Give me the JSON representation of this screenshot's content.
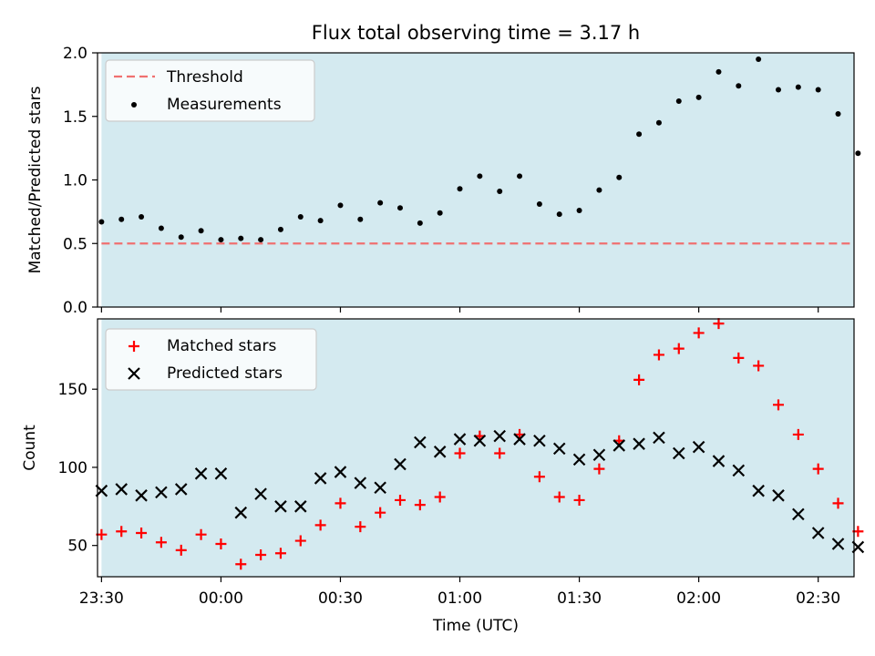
{
  "chart_data": [
    {
      "type": "scatter",
      "title": "Flux total observing time = 3.17 h",
      "ylabel": "Matched/Predicted stars",
      "xlim": [
        "23:29",
        "02:39"
      ],
      "ylim": [
        0,
        2.0
      ],
      "yticks": [
        0.0,
        0.5,
        1.0,
        1.5,
        2.0
      ],
      "ytick_labels": [
        "0.0",
        "0.5",
        "1.0",
        "1.5",
        "2.0"
      ],
      "grid": false,
      "legend": "top-left",
      "shaded_span": {
        "from": "23:30",
        "to": "02:39",
        "color": "#d4eaf0"
      },
      "threshold": {
        "name": "Threshold",
        "value": 0.5,
        "color": "#f07070",
        "style": "dashed"
      },
      "series": [
        {
          "name": "Measurements",
          "color": "#000000",
          "marker": "dot",
          "x": [
            "23:30",
            "23:35",
            "23:40",
            "23:45",
            "23:50",
            "23:55",
            "00:00",
            "00:05",
            "00:10",
            "00:15",
            "00:20",
            "00:25",
            "00:30",
            "00:35",
            "00:40",
            "00:45",
            "00:50",
            "00:55",
            "01:00",
            "01:05",
            "01:10",
            "01:15",
            "01:20",
            "01:25",
            "01:30",
            "01:35",
            "01:40",
            "01:45",
            "01:50",
            "01:55",
            "02:00",
            "02:05",
            "02:10",
            "02:15",
            "02:20",
            "02:25",
            "02:30",
            "02:35",
            "02:40"
          ],
          "y": [
            0.67,
            0.69,
            0.71,
            0.62,
            0.55,
            0.6,
            0.53,
            0.54,
            0.53,
            0.61,
            0.71,
            0.68,
            0.8,
            0.69,
            0.82,
            0.78,
            0.66,
            0.74,
            0.93,
            1.03,
            0.91,
            1.03,
            0.81,
            0.73,
            0.76,
            0.92,
            1.02,
            1.36,
            1.45,
            1.62,
            1.65,
            1.85,
            1.74,
            1.95,
            1.71,
            1.73,
            1.71,
            1.52,
            1.21
          ]
        }
      ]
    },
    {
      "type": "scatter",
      "xlabel": "Time (UTC)",
      "ylabel": "Count",
      "xlim": [
        "23:29",
        "02:39"
      ],
      "xtick_labels": [
        "23:30",
        "00:00",
        "00:30",
        "01:00",
        "01:30",
        "02:00",
        "02:30"
      ],
      "ylim": [
        30,
        195
      ],
      "yticks": [
        50,
        100,
        150
      ],
      "ytick_labels": [
        "50",
        "100",
        "150"
      ],
      "grid": false,
      "legend": "top-left",
      "series": [
        {
          "name": "Matched stars",
          "color": "#ff0000",
          "marker": "plus",
          "x": [
            "23:30",
            "23:35",
            "23:40",
            "23:45",
            "23:50",
            "23:55",
            "00:00",
            "00:05",
            "00:10",
            "00:15",
            "00:20",
            "00:25",
            "00:30",
            "00:35",
            "00:40",
            "00:45",
            "00:50",
            "00:55",
            "01:00",
            "01:05",
            "01:10",
            "01:15",
            "01:20",
            "01:25",
            "01:30",
            "01:35",
            "01:40",
            "01:45",
            "01:50",
            "01:55",
            "02:00",
            "02:05",
            "02:10",
            "02:15",
            "02:20",
            "02:25",
            "02:30",
            "02:35",
            "02:40"
          ],
          "y": [
            57,
            59,
            58,
            52,
            47,
            57,
            51,
            38,
            44,
            45,
            53,
            63,
            77,
            62,
            71,
            79,
            76,
            81,
            109,
            120,
            109,
            121,
            94,
            81,
            79,
            99,
            117,
            156,
            172,
            176,
            186,
            192,
            170,
            165,
            140,
            121,
            99,
            77,
            59
          ]
        },
        {
          "name": "Predicted stars",
          "color": "#000000",
          "marker": "x",
          "x": [
            "23:30",
            "23:35",
            "23:40",
            "23:45",
            "23:50",
            "23:55",
            "00:00",
            "00:05",
            "00:10",
            "00:15",
            "00:20",
            "00:25",
            "00:30",
            "00:35",
            "00:40",
            "00:45",
            "00:50",
            "00:55",
            "01:00",
            "01:05",
            "01:10",
            "01:15",
            "01:20",
            "01:25",
            "01:30",
            "01:35",
            "01:40",
            "01:45",
            "01:50",
            "01:55",
            "02:00",
            "02:05",
            "02:10",
            "02:15",
            "02:20",
            "02:25",
            "02:30",
            "02:35",
            "02:40"
          ],
          "y": [
            85,
            86,
            82,
            84,
            86,
            96,
            96,
            71,
            83,
            75,
            75,
            93,
            97,
            90,
            87,
            102,
            116,
            110,
            118,
            117,
            120,
            118,
            117,
            112,
            105,
            108,
            114,
            115,
            119,
            109,
            113,
            104,
            98,
            85,
            82,
            70,
            58,
            51,
            49
          ]
        }
      ]
    }
  ]
}
